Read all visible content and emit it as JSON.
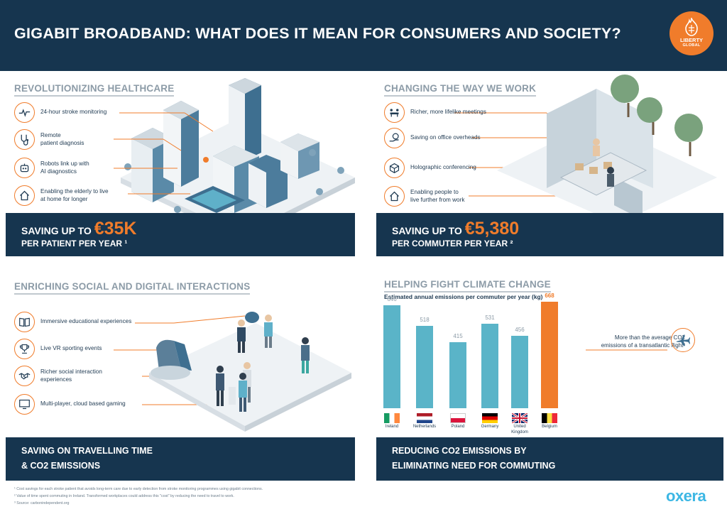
{
  "header": {
    "title": "GIGABIT BROADBAND: WHAT DOES IT MEAN FOR CONSUMERS AND SOCIETY?"
  },
  "logo": {
    "line1": "LIBERTY",
    "line2": "GLOBAL",
    "icon": "flame-logo-icon"
  },
  "healthcare": {
    "heading": "REVOLUTIONIZING HEALTHCARE",
    "items": [
      {
        "label": "24-hour stroke monitoring",
        "icon": "heartbeat-icon"
      },
      {
        "label": "Remote\npatient diagnosis",
        "icon": "stethoscope-icon"
      },
      {
        "label": "Robots link up with\nAI diagnostics",
        "icon": "robot-icon"
      },
      {
        "label": "Enabling the elderly to live\nat home for longer",
        "icon": "house-icon"
      }
    ],
    "saving_prefix": "SAVING UP TO",
    "saving_value": "€35K",
    "saving_suffix": "PER PATIENT PER YEAR ¹"
  },
  "work": {
    "heading": "CHANGING THE WAY WE WORK",
    "items": [
      {
        "label": "Richer, more lifelike meetings",
        "icon": "meeting-icon"
      },
      {
        "label": "Saving on office overheads",
        "icon": "euro-hand-icon"
      },
      {
        "label": "Holographic conferencing",
        "icon": "hologram-cube-icon"
      },
      {
        "label": "Enabling people to\nlive further from work",
        "icon": "house-icon"
      }
    ],
    "saving_prefix": "SAVING UP TO",
    "saving_value": "€5,380",
    "saving_suffix": "PER COMMUTER PER YEAR ²"
  },
  "social": {
    "heading": "ENRICHING SOCIAL AND DIGITAL INTERACTIONS",
    "items": [
      {
        "label": "Immersive educational experiences",
        "icon": "book-icon"
      },
      {
        "label": "Live VR sporting events",
        "icon": "trophy-icon"
      },
      {
        "label": "Richer social interaction\nexperiences",
        "icon": "handshake-icon"
      },
      {
        "label": "Multi-player, cloud based gaming",
        "icon": "monitor-icon"
      }
    ],
    "band_text": "SAVING ON TRAVELLING TIME\n& CO2 EMISSIONS"
  },
  "climate": {
    "heading": "HELPING FIGHT CLIMATE CHANGE",
    "subtitle": "Estimated annual emissions per commuter per year (kg)",
    "note": "More than the average CO2\nemissions of a transatlantic flight³",
    "band_text": "REDUCING CO2 EMISSIONS BY\nELIMINATING NEED FOR COMMUTING"
  },
  "chart_data": {
    "type": "bar",
    "title": "Estimated annual emissions per commuter per year (kg)",
    "categories": [
      "Ireland",
      "Netherlands",
      "Poland",
      "Germany",
      "United Kingdom",
      "Belgium"
    ],
    "country_labels": [
      "Ireland",
      "Netherlands",
      "Poland",
      "Germany",
      "United\nKingdom",
      "Belgium"
    ],
    "values": [
      646,
      518,
      415,
      531,
      456,
      668
    ],
    "colors": [
      "#5ab4c8",
      "#5ab4c8",
      "#5ab4c8",
      "#5ab4c8",
      "#5ab4c8",
      "#f07c2b"
    ],
    "ylim": [
      0,
      668
    ],
    "grid": false
  },
  "footnotes": [
    "¹ Cost savings for each stroke patient that avoids long-term care due to early detection from stroke monitoring programmes using gigabit connections.",
    "² Value of time spent commuting in Ireland. Transformed workplaces could address this \"cost\" by reducing the need to travel to work.",
    "³ Source: carbonindependent.org"
  ],
  "brand": {
    "oxera": "oxera"
  },
  "colors": {
    "navy": "#16354f",
    "orange": "#f07c2b",
    "teal": "#5ab4c8",
    "grey_heading": "#8c9ba7"
  }
}
